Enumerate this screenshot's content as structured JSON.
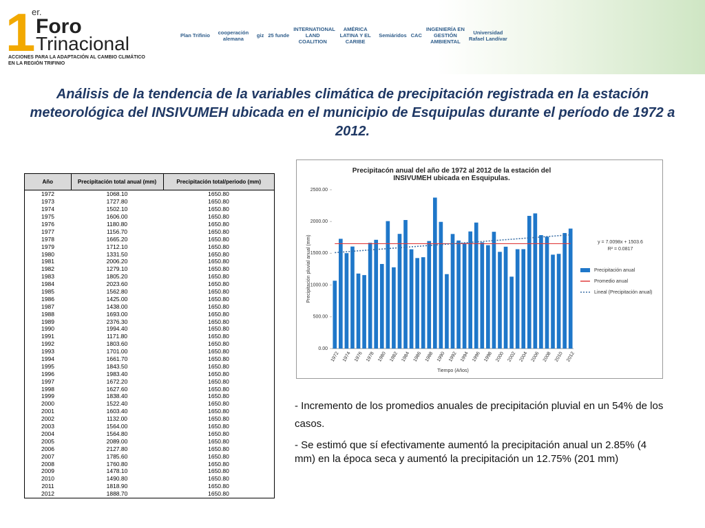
{
  "header": {
    "logo": {
      "sup": "er.",
      "number": "1",
      "line1": "Foro",
      "line2": "Trinacional",
      "tagline1": "ACCIONES PARA LA ADAPTACIÓN AL CAMBIO CLIMÁTICO",
      "tagline2": "EN LA REGIÓN TRIFINIO"
    },
    "partners": [
      "Plan Trifinio",
      "cooperación alemana",
      "giz",
      "25 funde",
      "INTERNATIONAL LAND COALITION",
      "AMÉRICA LATINA Y EL CARIBE",
      "Semiáridos",
      "CAC",
      "INGENIERÍA EN GESTIÓN AMBIENTAL",
      "Universidad Rafael Landívar"
    ]
  },
  "title": "Análisis de la tendencia de la variables climática de precipitación registrada en la estación meteorológica del INSIVUMEH ubicada en el municipio de Esquipulas durante el período de 1972 a 2012.",
  "table": {
    "header": [
      "Año",
      "Precipitación total anual (mm)",
      "Precipitación total/periodo (mm)"
    ],
    "rows": [
      [
        "1972",
        "1068.10",
        "1650.80"
      ],
      [
        "1973",
        "1727.80",
        "1650.80"
      ],
      [
        "1974",
        "1502.10",
        "1650.80"
      ],
      [
        "1975",
        "1606.00",
        "1650.80"
      ],
      [
        "1976",
        "1180.80",
        "1650.80"
      ],
      [
        "1977",
        "1156.70",
        "1650.80"
      ],
      [
        "1978",
        "1665.20",
        "1650.80"
      ],
      [
        "1979",
        "1712.10",
        "1650.80"
      ],
      [
        "1980",
        "1331.50",
        "1650.80"
      ],
      [
        "1981",
        "2006.20",
        "1650.80"
      ],
      [
        "1982",
        "1279.10",
        "1650.80"
      ],
      [
        "1983",
        "1805.20",
        "1650.80"
      ],
      [
        "1984",
        "2023.60",
        "1650.80"
      ],
      [
        "1985",
        "1562.80",
        "1650.80"
      ],
      [
        "1986",
        "1425.00",
        "1650.80"
      ],
      [
        "1987",
        "1438.00",
        "1650.80"
      ],
      [
        "1988",
        "1693.00",
        "1650.80"
      ],
      [
        "1989",
        "2376.30",
        "1650.80"
      ],
      [
        "1990",
        "1994.40",
        "1650.80"
      ],
      [
        "1991",
        "1171.80",
        "1650.80"
      ],
      [
        "1992",
        "1803.60",
        "1650.80"
      ],
      [
        "1993",
        "1701.00",
        "1650.80"
      ],
      [
        "1994",
        "1661.70",
        "1650.80"
      ],
      [
        "1995",
        "1843.50",
        "1650.80"
      ],
      [
        "1996",
        "1983.40",
        "1650.80"
      ],
      [
        "1997",
        "1672.20",
        "1650.80"
      ],
      [
        "1998",
        "1627.60",
        "1650.80"
      ],
      [
        "1999",
        "1838.40",
        "1650.80"
      ],
      [
        "2000",
        "1522.40",
        "1650.80"
      ],
      [
        "2001",
        "1603.40",
        "1650.80"
      ],
      [
        "2002",
        "1132.00",
        "1650.80"
      ],
      [
        "2003",
        "1564.00",
        "1650.80"
      ],
      [
        "2004",
        "1564.80",
        "1650.80"
      ],
      [
        "2005",
        "2089.00",
        "1650.80"
      ],
      [
        "2006",
        "2127.80",
        "1650.80"
      ],
      [
        "2007",
        "1785.60",
        "1650.80"
      ],
      [
        "2008",
        "1760.80",
        "1650.80"
      ],
      [
        "2009",
        "1478.10",
        "1650.80"
      ],
      [
        "2010",
        "1490.80",
        "1650.80"
      ],
      [
        "2011",
        "1818.90",
        "1650.80"
      ],
      [
        "2012",
        "1888.70",
        "1650.80"
      ]
    ]
  },
  "chart_data": {
    "type": "bar",
    "title": "Precipitacón anual del año de 1972 al 2012 de la estación del INSIVUMEH ubicada en Esquipulas.",
    "x_label": "Tiempo (Años)",
    "y_label": "Precipitación pluvial anual (mm)",
    "categories": [
      "1972",
      null,
      "1974",
      null,
      "1976",
      null,
      "1978",
      null,
      "1980",
      null,
      "1982",
      null,
      "1984",
      null,
      "1986",
      null,
      "1988",
      null,
      "1990",
      null,
      "1992",
      null,
      "1994",
      null,
      "1996",
      null,
      "1998",
      null,
      "2000",
      null,
      "2002",
      null,
      "2004",
      null,
      "2006",
      null,
      "2008",
      null,
      "2010",
      null,
      "2012"
    ],
    "series": [
      {
        "name": "Precipitación anual",
        "type": "bar",
        "color": "#1f77c9",
        "values": [
          1068.1,
          1727.8,
          1502.1,
          1606.0,
          1180.8,
          1156.7,
          1665.2,
          1712.1,
          1331.5,
          2006.2,
          1279.1,
          1805.2,
          2023.6,
          1562.8,
          1425.0,
          1438.0,
          1693.0,
          2376.3,
          1994.4,
          1171.8,
          1803.6,
          1701.0,
          1661.7,
          1843.5,
          1983.4,
          1672.2,
          1627.6,
          1838.4,
          1522.4,
          1603.4,
          1132.0,
          1564.0,
          1564.8,
          2089.0,
          2127.8,
          1785.6,
          1760.8,
          1478.1,
          1490.8,
          1818.9,
          1888.7
        ]
      },
      {
        "name": "Promedio anual",
        "type": "line",
        "color": "#e03c3c",
        "values": [
          1650.8,
          1650.8,
          1650.8,
          1650.8,
          1650.8,
          1650.8,
          1650.8,
          1650.8,
          1650.8,
          1650.8,
          1650.8,
          1650.8,
          1650.8,
          1650.8,
          1650.8,
          1650.8,
          1650.8,
          1650.8,
          1650.8,
          1650.8,
          1650.8,
          1650.8,
          1650.8,
          1650.8,
          1650.8,
          1650.8,
          1650.8,
          1650.8,
          1650.8,
          1650.8,
          1650.8,
          1650.8,
          1650.8,
          1650.8,
          1650.8,
          1650.8,
          1650.8,
          1650.8,
          1650.8,
          1650.8,
          1650.8
        ]
      },
      {
        "name": "Lineal (Precipitación anual)",
        "type": "dotted",
        "color": "#3a6ea5",
        "values": [
          1510.6,
          1517.6,
          1524.6,
          1531.6,
          1538.6,
          1545.7,
          1552.7,
          1559.7,
          1566.7,
          1573.7,
          1580.7,
          1587.7,
          1594.7,
          1601.7,
          1608.7,
          1615.8,
          1622.8,
          1629.8,
          1636.8,
          1643.8,
          1650.8,
          1657.8,
          1664.8,
          1671.8,
          1678.8,
          1685.9,
          1692.9,
          1699.9,
          1706.9,
          1713.9,
          1720.9,
          1727.9,
          1734.9,
          1741.9,
          1748.9,
          1756.0,
          1763.0,
          1770.0,
          1777.0,
          1784.0,
          1791.0
        ]
      }
    ],
    "annotations": [
      "y = 7.0098x + 1503.6",
      "R² = 0.0817"
    ],
    "ylim": [
      0,
      2500
    ],
    "yticks": [
      {
        "value": 0,
        "label": "0.00"
      },
      {
        "value": 500,
        "label": "500.00"
      },
      {
        "value": 1000,
        "label": "1000.00"
      },
      {
        "value": 1500,
        "label": "1500.00"
      },
      {
        "value": 2000,
        "label": "2000.00"
      },
      {
        "value": 2500,
        "label": "2500.00"
      }
    ],
    "grid": false,
    "legend": "right"
  },
  "notes": [
    "- Incremento de los promedios anuales de precipitación pluvial en un 54% de los casos.",
    "- Se estimó que sí efectivamente aumentó la precipitación anual un 2.85% (4 mm) en la época seca y aumentó la precipitación un 12.75% (201 mm)"
  ]
}
